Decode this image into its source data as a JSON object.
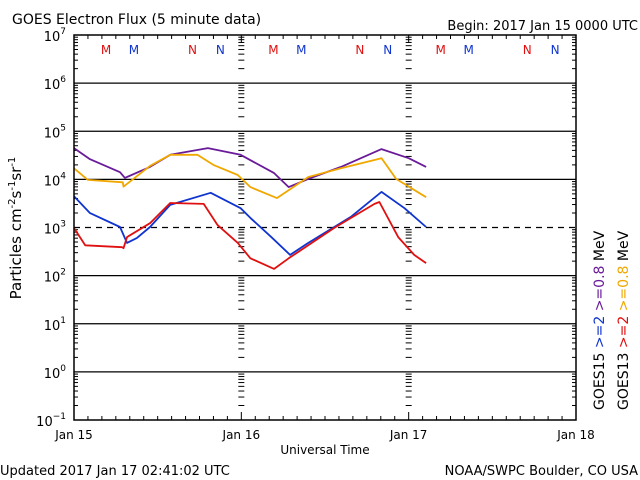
{
  "chart_data": {
    "type": "line",
    "title": "GOES Electron Flux (5 minute data)",
    "begin_label": "Begin: 2017 Jan 15 0000 UTC",
    "xlabel": "Universal Time",
    "ylabel": "Particles cm⁻²s⁻¹sr⁻¹",
    "ylabel_parts": {
      "main": "Particles cm",
      "e1": "-2",
      "s": "s",
      "e2": "-1",
      "sr": "sr",
      "e3": "-1"
    },
    "x_unit": "hours since 2017 Jan 15 0000 UTC",
    "xlim": [
      0,
      72
    ],
    "x_ticks": [
      {
        "h": 0,
        "label": "Jan 15"
      },
      {
        "h": 24,
        "label": "Jan 16"
      },
      {
        "h": 48,
        "label": "Jan 17"
      },
      {
        "h": 72,
        "label": "Jan 18"
      }
    ],
    "yscale": "log",
    "ylim_exp": [
      -1,
      7
    ],
    "y_ticks": [
      {
        "base": "10",
        "exp": "7"
      },
      {
        "base": "10",
        "exp": "6"
      },
      {
        "base": "10",
        "exp": "5"
      },
      {
        "base": "10",
        "exp": "4"
      },
      {
        "base": "10",
        "exp": "3"
      },
      {
        "base": "10",
        "exp": "2"
      },
      {
        "base": "10",
        "exp": "1"
      },
      {
        "base": "10",
        "exp": "0"
      },
      {
        "base": "10",
        "exp": "-1"
      }
    ],
    "threshold_exp": 3,
    "grid": "horizontal at each decade",
    "series": [
      {
        "name": "GOES15 >=0.8 MeV",
        "color": "#6a1b9a",
        "points_log10": [
          [
            0,
            4.65
          ],
          [
            2.3,
            4.42
          ],
          [
            6.6,
            4.15
          ],
          [
            7.3,
            4.03
          ],
          [
            10.9,
            4.26
          ],
          [
            13.8,
            4.51
          ],
          [
            19.2,
            4.65
          ],
          [
            23.9,
            4.51
          ],
          [
            28.7,
            4.13
          ],
          [
            30.8,
            3.84
          ],
          [
            33.6,
            4.01
          ],
          [
            38.3,
            4.26
          ],
          [
            44.1,
            4.63
          ],
          [
            48.0,
            4.44
          ],
          [
            50.5,
            4.26
          ]
        ]
      },
      {
        "name": "GOES13 >=0.8 MeV",
        "color": "#f0a800",
        "points_log10": [
          [
            0,
            4.23
          ],
          [
            2,
            3.99
          ],
          [
            7,
            3.94
          ],
          [
            7.1,
            3.85
          ],
          [
            10.9,
            4.28
          ],
          [
            13.8,
            4.51
          ],
          [
            17.7,
            4.51
          ],
          [
            20,
            4.3
          ],
          [
            23.5,
            4.09
          ],
          [
            25.3,
            3.84
          ],
          [
            29.1,
            3.61
          ],
          [
            33.6,
            4.05
          ],
          [
            38.3,
            4.23
          ],
          [
            44.1,
            4.44
          ],
          [
            46.2,
            4.01
          ],
          [
            50.5,
            3.63
          ]
        ]
      },
      {
        "name": "GOES15 >=2 MeV",
        "color": "#1034d0",
        "points_log10": [
          [
            0,
            3.65
          ],
          [
            2.3,
            3.3
          ],
          [
            6.6,
            3.01
          ],
          [
            7.6,
            2.68
          ],
          [
            9,
            2.78
          ],
          [
            10.9,
            3.01
          ],
          [
            13.8,
            3.47
          ],
          [
            19.6,
            3.72
          ],
          [
            23.9,
            3.4
          ],
          [
            25.3,
            3.2
          ],
          [
            28.3,
            2.8
          ],
          [
            31,
            2.43
          ],
          [
            33.6,
            2.68
          ],
          [
            39.7,
            3.22
          ],
          [
            44.1,
            3.74
          ],
          [
            47.4,
            3.4
          ],
          [
            50.5,
            3.01
          ]
        ]
      },
      {
        "name": "GOES13 >=2 MeV",
        "color": "#e01010",
        "points_log10": [
          [
            0,
            2.99
          ],
          [
            1.6,
            2.63
          ],
          [
            6.9,
            2.59
          ],
          [
            7.1,
            2.57
          ],
          [
            7.6,
            2.8
          ],
          [
            10.9,
            3.09
          ],
          [
            13.8,
            3.51
          ],
          [
            18.6,
            3.49
          ],
          [
            20.6,
            3.05
          ],
          [
            23.5,
            2.68
          ],
          [
            25.3,
            2.36
          ],
          [
            28.7,
            2.14
          ],
          [
            30.8,
            2.36
          ],
          [
            37.3,
            2.99
          ],
          [
            43.1,
            3.49
          ],
          [
            43.8,
            3.53
          ],
          [
            46.5,
            2.8
          ],
          [
            48.8,
            2.43
          ],
          [
            50.5,
            2.26
          ]
        ]
      }
    ],
    "noon_midnight_markers": [
      {
        "h": 4.6,
        "label": "M",
        "color": "#e01010"
      },
      {
        "h": 8.6,
        "label": "M",
        "color": "#1034d0"
      },
      {
        "h": 17,
        "label": "N",
        "color": "#e01010"
      },
      {
        "h": 21,
        "label": "N",
        "color": "#1034d0"
      },
      {
        "h": 28.6,
        "label": "M",
        "color": "#e01010"
      },
      {
        "h": 32.6,
        "label": "M",
        "color": "#1034d0"
      },
      {
        "h": 41,
        "label": "N",
        "color": "#e01010"
      },
      {
        "h": 45,
        "label": "N",
        "color": "#1034d0"
      },
      {
        "h": 52.6,
        "label": "M",
        "color": "#e01010"
      },
      {
        "h": 56.6,
        "label": "M",
        "color": "#1034d0"
      },
      {
        "h": 65,
        "label": "N",
        "color": "#e01010"
      },
      {
        "h": 69,
        "label": "N",
        "color": "#1034d0"
      }
    ],
    "legend": {
      "placement": "right, vertical",
      "columns": [
        [
          {
            "text": "GOES15",
            "color": "#000000"
          },
          {
            "text": ">=2",
            "color": "#1034d0"
          },
          {
            "text": ">=0.8",
            "color": "#6a1b9a"
          },
          {
            "text": "MeV",
            "color": "#000000"
          }
        ],
        [
          {
            "text": "GOES13",
            "color": "#000000"
          },
          {
            "text": ">=2",
            "color": "#e01010"
          },
          {
            "text": ">=0.8",
            "color": "#f0a800"
          },
          {
            "text": "MeV",
            "color": "#000000"
          }
        ]
      ]
    }
  },
  "footer": {
    "updated": "Updated 2017 Jan 17 02:41:02 UTC",
    "credit": "NOAA/SWPC Boulder, CO USA"
  }
}
